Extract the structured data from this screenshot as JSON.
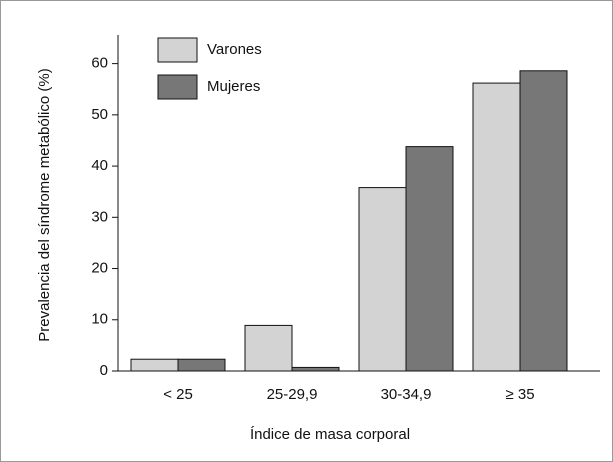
{
  "chart_data": {
    "type": "bar",
    "xlabel": "Índice de masa corporal",
    "ylabel": "Prevalencia del síndrome metabólico (%)",
    "categories": [
      "< 25",
      "25-29,9",
      "30-34,9",
      "≥ 35"
    ],
    "series": [
      {
        "name": "Varones",
        "color": "#d3d3d3",
        "values": [
          2.3,
          8.9,
          35.8,
          56.2
        ]
      },
      {
        "name": "Mujeres",
        "color": "#777777",
        "values": [
          2.3,
          0.7,
          43.8,
          58.6
        ]
      }
    ],
    "ylim": [
      0,
      65
    ],
    "yticks": [
      0,
      10,
      20,
      30,
      40,
      50,
      60
    ],
    "legend": "upper left"
  }
}
